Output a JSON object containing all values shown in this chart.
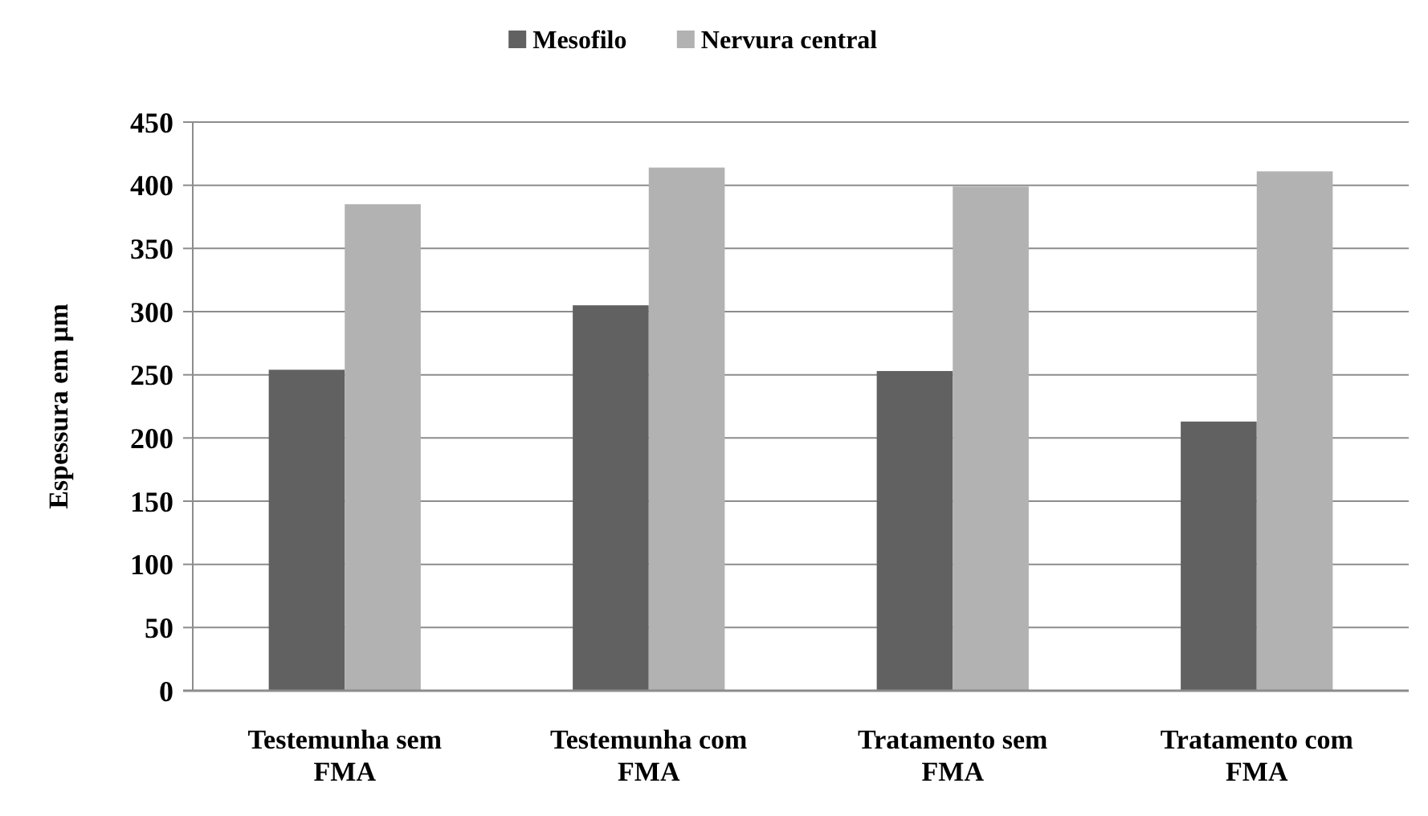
{
  "chart_data": {
    "type": "bar",
    "ylabel": "Espessura em µm",
    "categories": [
      "Testemunha sem FMA",
      "Testemunha com FMA",
      "Tratamento sem FMA",
      "Tratamento com FMA"
    ],
    "series": [
      {
        "name": "Mesofilo",
        "color": "#616161",
        "values": [
          254,
          305,
          253,
          213
        ]
      },
      {
        "name": "Nervura central",
        "color": "#b2b2b2",
        "values": [
          385,
          414,
          399,
          411
        ]
      }
    ],
    "ylim": [
      0,
      450
    ],
    "yticks": [
      0,
      50,
      100,
      150,
      200,
      250,
      300,
      350,
      400,
      450
    ],
    "grid": "y",
    "legend": "top"
  }
}
